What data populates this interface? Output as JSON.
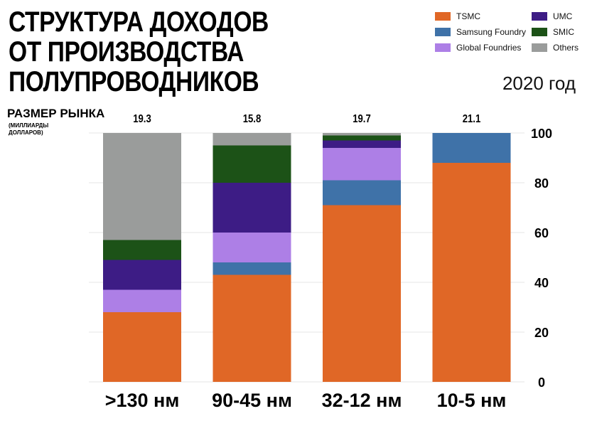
{
  "title_lines": [
    "СТРУКТУРА ДОХОДОВ",
    "ОТ ПРОИЗВОДСТВА",
    "ПОЛУПРОВОДНИКОВ"
  ],
  "year": "2020 год",
  "market_size": {
    "label": "РАЗМЕР РЫНКА",
    "sublabel": "(МИЛЛИАРДЫ ДОЛЛАРОВ)"
  },
  "colors": {
    "TSMC": "#e06726",
    "Samsung Foundry": "#3f72a8",
    "Global Foundries": "#ad7fe6",
    "UMC": "#3d1c85",
    "SMIC": "#1c5217",
    "Others": "#9a9c9b"
  },
  "chart_data": {
    "type": "bar",
    "stacked": true,
    "categories": [
      ">130 нм",
      "90-45 нм",
      "32-12 нм",
      "10-5 нм"
    ],
    "market_size_values": [
      "19.3",
      "15.8",
      "19.7",
      "21.1"
    ],
    "series": [
      {
        "name": "TSMC",
        "values": [
          28,
          43,
          71,
          88
        ]
      },
      {
        "name": "Samsung Foundry",
        "values": [
          0,
          5,
          10,
          12
        ]
      },
      {
        "name": "Global Foundries",
        "values": [
          9,
          12,
          13,
          0
        ]
      },
      {
        "name": "UMC",
        "values": [
          12,
          20,
          3,
          0
        ]
      },
      {
        "name": "SMIC",
        "values": [
          8,
          15,
          2,
          0
        ]
      },
      {
        "name": "Others",
        "values": [
          43,
          5,
          1,
          0
        ]
      }
    ],
    "legend": [
      "TSMC",
      "Samsung Foundry",
      "Global Foundries",
      "UMC",
      "SMIC",
      "Others"
    ],
    "legend_position": "top-right",
    "ylim": [
      0,
      100
    ],
    "yticks": [
      "0",
      "20",
      "40",
      "60",
      "80",
      "100"
    ],
    "y_axis_side": "right",
    "grid": true
  }
}
